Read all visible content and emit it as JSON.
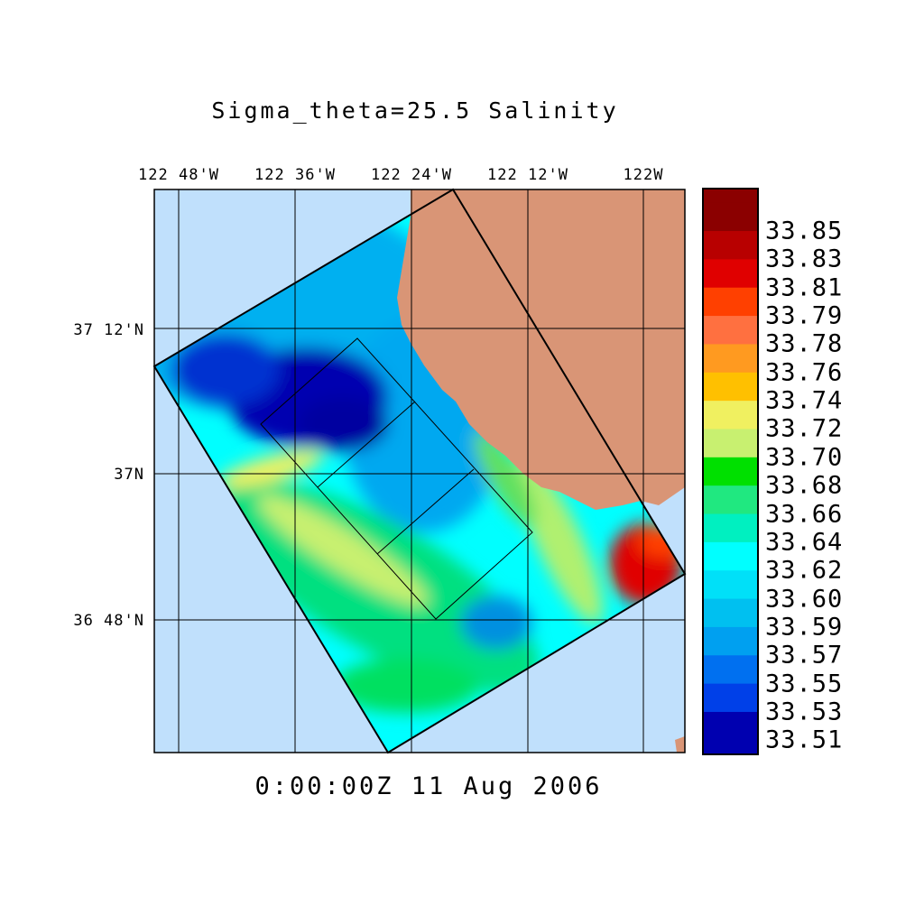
{
  "title": "Sigma_theta=25.5 Salinity",
  "timestamp": "0:00:00Z  11 Aug 2006",
  "map": {
    "longitude_labels": [
      "122 48'W",
      "122 36'W",
      "122 24'W",
      "122 12'W",
      "122W"
    ],
    "latitude_labels": [
      "37 12'N",
      "37N",
      "36 48'N"
    ],
    "colors": {
      "ocean": "#c0e0fc",
      "land": "#d99576",
      "grid": "#000000"
    }
  },
  "colorbar": {
    "labels": [
      "33.85",
      "33.83",
      "33.81",
      "33.79",
      "33.78",
      "33.76",
      "33.74",
      "33.72",
      "33.70",
      "33.68",
      "33.66",
      "33.64",
      "33.62",
      "33.60",
      "33.59",
      "33.57",
      "33.55",
      "33.53",
      "33.51"
    ],
    "colors": [
      "#8b0000",
      "#b80000",
      "#e00000",
      "#ff4000",
      "#ff7040",
      "#ff9a20",
      "#ffc000",
      "#f0f060",
      "#c8f070",
      "#00e000",
      "#20e880",
      "#00f0c0",
      "#00ffff",
      "#00e0f8",
      "#00c0f0",
      "#00a0f0",
      "#0070f0",
      "#0040e8",
      "#0000b0"
    ]
  }
}
